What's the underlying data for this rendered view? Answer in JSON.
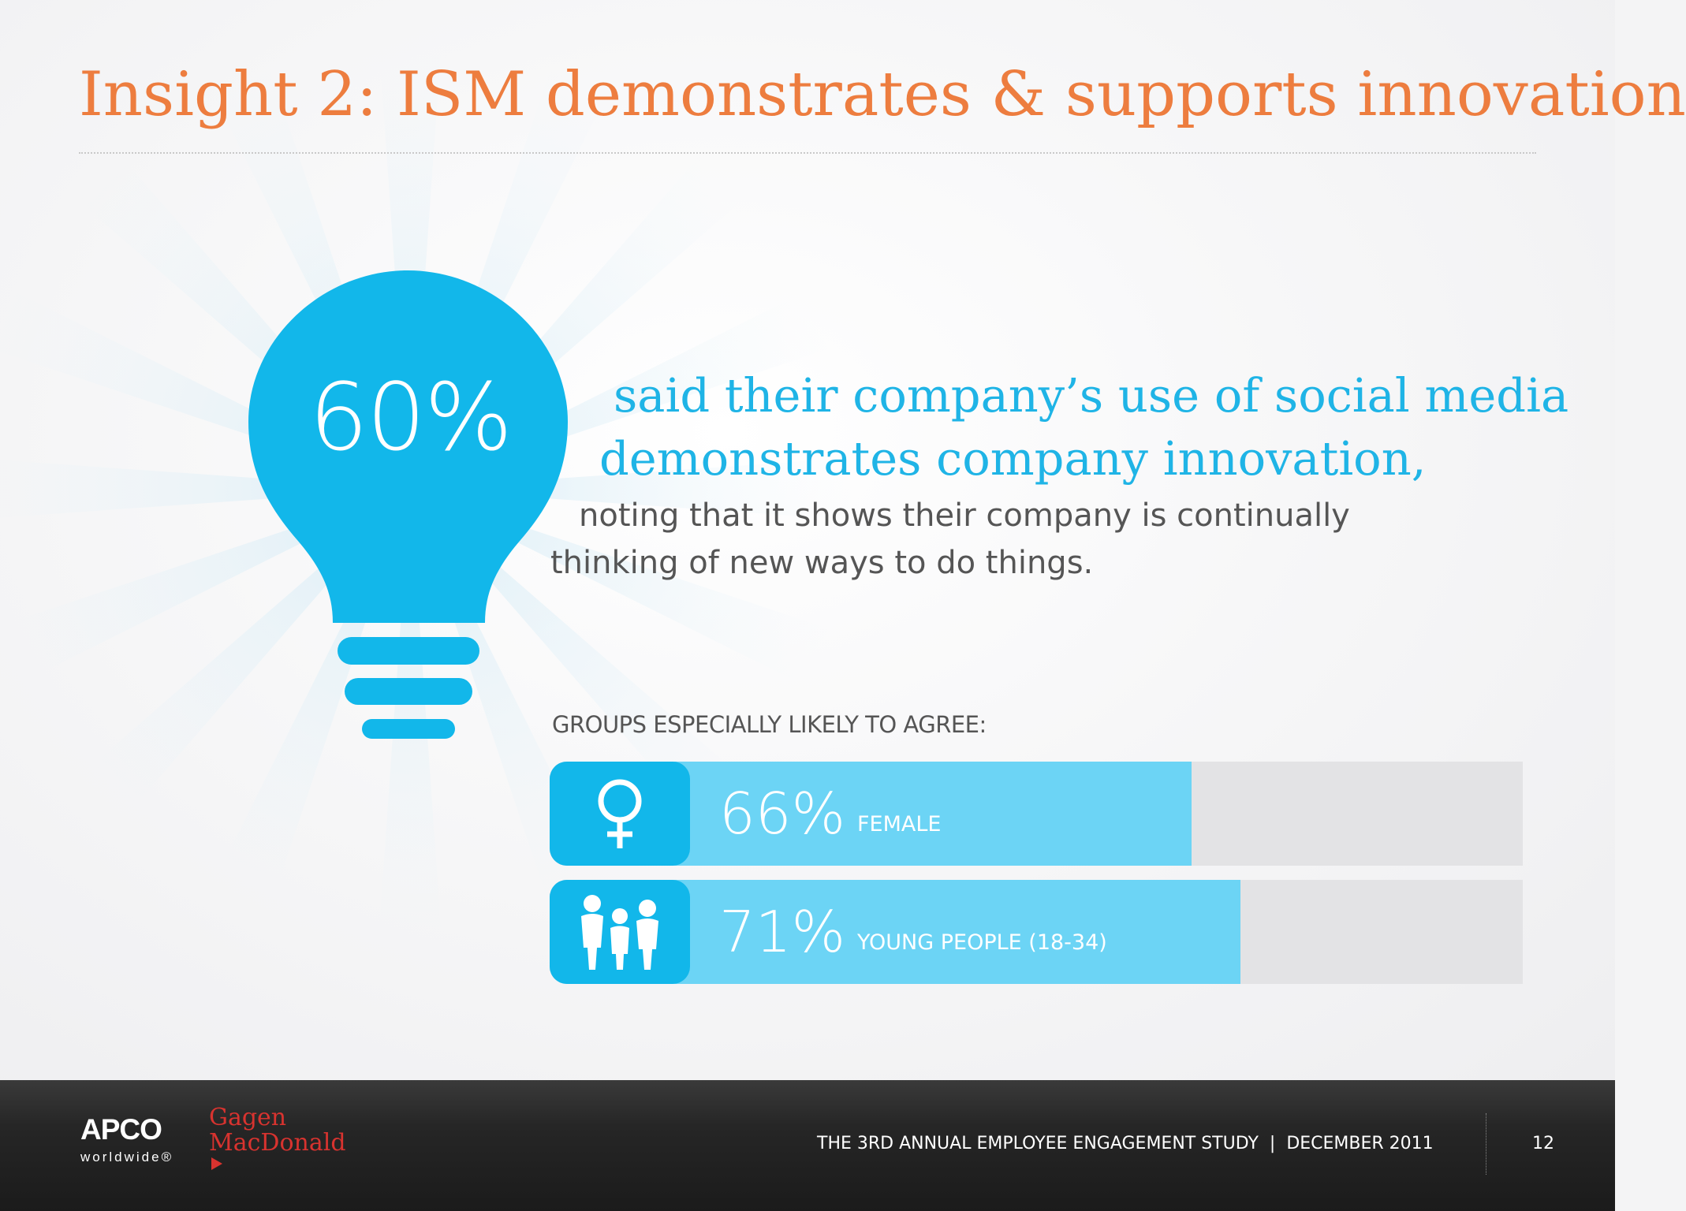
{
  "slide": {
    "title": "Insight 2: ISM demonstrates & supports innovation",
    "colors": {
      "title": "#ed7d3f",
      "accent": "#12b7ea",
      "accent_light": "#6cd4f5",
      "footer": "#222222"
    }
  },
  "stat": {
    "percent": "60%",
    "lead_line1": "said their company’s use of social media",
    "lead_line2": "demonstrates company innovation,",
    "sub_line1": "noting that it shows their company is continually",
    "sub_line2": "thinking of new ways to do things.",
    "icon": "lightbulb-icon"
  },
  "groups": {
    "heading": "GROUPS ESPECIALLY LIKELY TO AGREE:",
    "items": [
      {
        "percent": "66%",
        "label": "FEMALE",
        "value": 66,
        "icon": "female-icon"
      },
      {
        "percent": "71%",
        "label": "YOUNG PEOPLE (18-34)",
        "value": 71,
        "icon": "young-people-icon"
      }
    ]
  },
  "footer": {
    "logo_apco": "APCO",
    "logo_apco_sub": "worldwide®",
    "logo_gagen_line1": "Gagen",
    "logo_gagen_line2": "MacDonald",
    "study": "THE 3RD ANNUAL EMPLOYEE ENGAGEMENT STUDY",
    "separator": "|",
    "date": "DECEMBER 2011",
    "page": "12"
  }
}
